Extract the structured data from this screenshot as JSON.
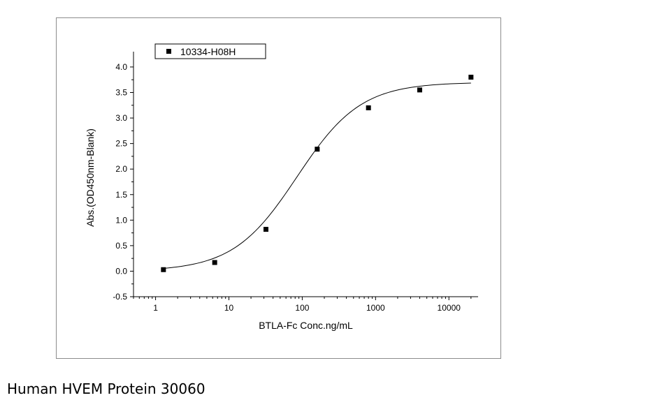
{
  "caption": "Human HVEM Protein 30060",
  "chart_data": {
    "type": "scatter",
    "title": "",
    "xlabel": "BTLA-Fc Conc.ng/mL",
    "ylabel": "Abs.(OD450nm-Blank)",
    "x_scale": "log",
    "xlim": [
      0.5,
      25000
    ],
    "ylim": [
      -0.5,
      4.3
    ],
    "x_ticks": [
      1,
      10,
      100,
      1000,
      10000
    ],
    "x_tick_labels": [
      "1",
      "10",
      "100",
      "1000",
      "10000"
    ],
    "y_ticks": [
      -0.5,
      0.0,
      0.5,
      1.0,
      1.5,
      2.0,
      2.5,
      3.0,
      3.5,
      4.0
    ],
    "y_tick_labels": [
      "-0.5",
      "0.0",
      "0.5",
      "1.0",
      "1.5",
      "2.0",
      "2.5",
      "3.0",
      "3.5",
      "4.0"
    ],
    "legend_position": "top-left",
    "grid": false,
    "series": [
      {
        "name": "10334-H08H",
        "marker": "square",
        "color": "#000000",
        "x": [
          1.28,
          6.4,
          32,
          160,
          800,
          4000,
          20000
        ],
        "y": [
          0.03,
          0.17,
          0.82,
          2.39,
          3.2,
          3.55,
          3.8
        ]
      }
    ],
    "fit_curve": {
      "type": "4PL",
      "color": "#000000",
      "x_range": [
        1.28,
        20000
      ]
    }
  }
}
